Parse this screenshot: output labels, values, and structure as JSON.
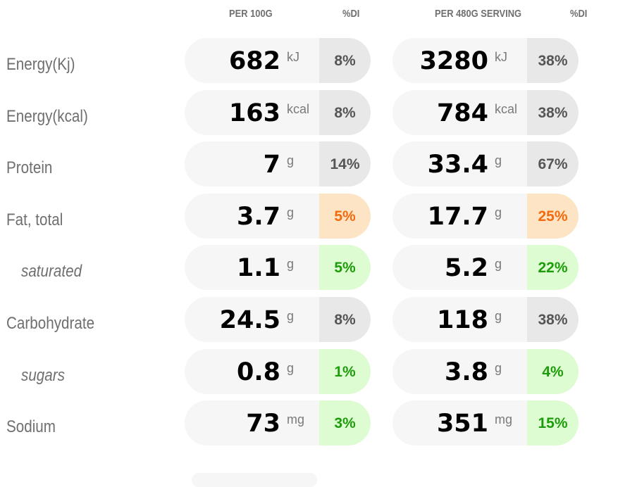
{
  "headers": {
    "per100": "PER 100G",
    "di1": "%DI",
    "perServing": "PER 480G SERVING",
    "di2": "%DI"
  },
  "rows": [
    {
      "label": "Energy(Kj)",
      "v100": "682",
      "u100": "kJ",
      "di100": "8%",
      "d100c": "gray",
      "vs": "3280",
      "us": "kJ",
      "dis": "38%",
      "dsc": "gray"
    },
    {
      "label": "Energy(kcal)",
      "v100": "163",
      "u100": "kcal",
      "di100": "8%",
      "d100c": "gray",
      "vs": "784",
      "us": "kcal",
      "dis": "38%",
      "dsc": "gray"
    },
    {
      "label": "Protein",
      "v100": "7",
      "u100": "g",
      "di100": "14%",
      "d100c": "gray",
      "vs": "33.4",
      "us": "g",
      "dis": "67%",
      "dsc": "gray"
    },
    {
      "label": "Fat, total",
      "v100": "3.7",
      "u100": "g",
      "di100": "5%",
      "d100c": "orange",
      "vs": "17.7",
      "us": "g",
      "dis": "25%",
      "dsc": "orange"
    },
    {
      "label": "saturated",
      "v100": "1.1",
      "u100": "g",
      "di100": "5%",
      "d100c": "green",
      "vs": "5.2",
      "us": "g",
      "dis": "22%",
      "dsc": "green"
    },
    {
      "label": "Carbohydrate",
      "v100": "24.5",
      "u100": "g",
      "di100": "8%",
      "d100c": "gray",
      "vs": "118",
      "us": "g",
      "dis": "38%",
      "dsc": "gray"
    },
    {
      "label": "sugars",
      "v100": "0.8",
      "u100": "g",
      "di100": "1%",
      "d100c": "green",
      "vs": "3.8",
      "us": "g",
      "dis": "4%",
      "dsc": "green"
    },
    {
      "label": "Sodium",
      "v100": "73",
      "u100": "mg",
      "di100": "3%",
      "d100c": "green",
      "vs": "351",
      "us": "mg",
      "dis": "15%",
      "dsc": "green"
    }
  ],
  "colors": {
    "gray": "#e8e8e8",
    "orange": "#fde4c4",
    "green": "#defcd2",
    "orangeText": "#f26b0e",
    "greenText": "#1d9c0b"
  }
}
